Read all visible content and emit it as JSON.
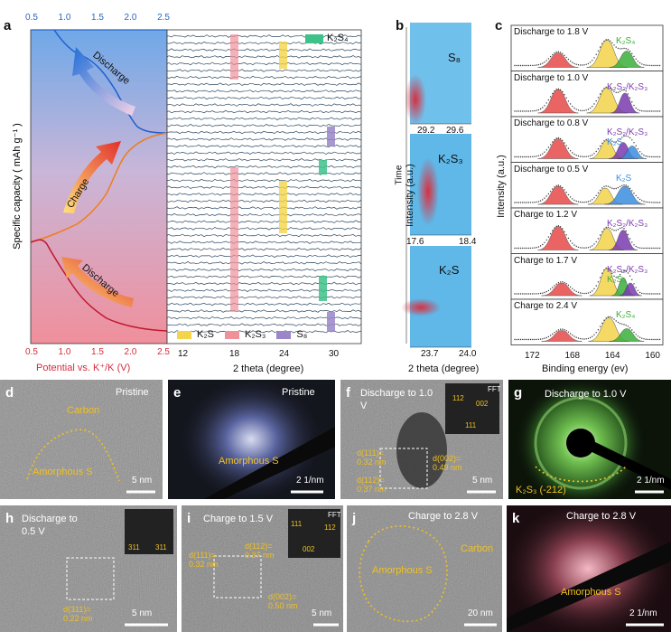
{
  "panels": {
    "a": {
      "letter": "a",
      "top_axis_ticks": [
        "0.5",
        "1.0",
        "1.5",
        "2.0",
        "2.5"
      ],
      "bottom_axis_ticks": [
        "0.5",
        "1.0",
        "1.5",
        "2.0",
        "2.5"
      ],
      "y_label": "Specific capacity ( mAh g⁻¹ )",
      "x_label": "Potential vs. K⁺/K (V)",
      "arrows": [
        "Discharge",
        "Charge",
        "Discharge"
      ],
      "xrd_ticks": [
        "12",
        "18",
        "24",
        "30"
      ],
      "xrd_xlabel": "2 theta (degree)",
      "legend_top": "K₂S₄",
      "legend_bottom": [
        "K₂S",
        "K₂S₃",
        "S₈"
      ]
    },
    "b": {
      "letter": "b",
      "ylabel_outer": "Intensity (a.u.)",
      "ylabel_mid": "Time",
      "sub": [
        {
          "label": "S₈",
          "ticks": [
            "29.2",
            "29.6"
          ]
        },
        {
          "label": "K₂S₃",
          "ticks": [
            "17.6",
            "18.4"
          ]
        },
        {
          "label": "K₂S",
          "ticks": [
            "23.7",
            "24.0"
          ]
        }
      ],
      "xlabel": "2 theta (degree)"
    },
    "c": {
      "letter": "c",
      "ylabel": "Intensity (a.u.)",
      "xlabel": "Binding energy (ev)",
      "ticks": [
        "172",
        "168",
        "164",
        "160"
      ],
      "rows": [
        {
          "state": "Discharge to 1.8 V",
          "species": [
            "K₂S₄"
          ]
        },
        {
          "state": "Discharge to 1.0 V",
          "species": [
            "K₂S₂/K₂S₃"
          ]
        },
        {
          "state": "Discharge to 0.8 V",
          "species": [
            "K₂S₂/K₂S₃",
            "K₂S"
          ]
        },
        {
          "state": "Discharge to 0.5 V",
          "species": [
            "K₂S"
          ]
        },
        {
          "state": "Charge to 1.2 V",
          "species": [
            "K₂S₂/K₂S₃"
          ]
        },
        {
          "state": "Charge to 1.7 V",
          "species": [
            "K₂S₂/K₂S₃",
            "K₂S₄"
          ]
        },
        {
          "state": "Charge to 2.4 V",
          "species": [
            "K₂S₄"
          ]
        }
      ]
    },
    "d": {
      "letter": "d",
      "title": "Pristine",
      "labels": [
        "Carbon",
        "Amorphous S"
      ],
      "scale": "5 nm"
    },
    "e": {
      "letter": "e",
      "title": "Pristine",
      "labels": [
        "Amorphous S"
      ],
      "scale": "2 1/nm"
    },
    "f": {
      "letter": "f",
      "title": "Discharge to 1.0 V",
      "fft": "FFT",
      "fft_labels": [
        "112",
        "002",
        "111"
      ],
      "labels": [
        "d(111)=",
        "0.32 nm",
        "d(112)=",
        "0.37 nm",
        "d(002)=",
        "0.49 nm"
      ],
      "scale": "5 nm"
    },
    "g": {
      "letter": "g",
      "title": "Discharge to 1.0 V",
      "labels": [
        "K₂S₃ (-212)"
      ],
      "scale": "2 1/nm"
    },
    "h": {
      "letter": "h",
      "title": "Discharge to 0.5 V",
      "fft_labels": [
        "311",
        "311"
      ],
      "labels": [
        "d(311)=",
        "0.22 nm"
      ],
      "scale": "5 nm"
    },
    "i": {
      "letter": "i",
      "title": "Charge to 1.5 V",
      "fft": "FFT",
      "fft_labels": [
        "111",
        "112",
        "002"
      ],
      "labels": [
        "d(111)=",
        "0.32 nm",
        "d(112)=",
        "0.37 nm",
        "d(002)=",
        "0.50 nm"
      ],
      "scale": "5 nm"
    },
    "j": {
      "letter": "j",
      "title": "Charge to 2.8 V",
      "labels": [
        "Carbon",
        "Amorphous S"
      ],
      "scale": "20 nm"
    },
    "k": {
      "letter": "k",
      "title": "Charge to 2.8 V",
      "labels": [
        "Amorphous S"
      ],
      "scale": "2 1/nm"
    }
  },
  "colors": {
    "blue_axis": "#2a64c8",
    "red_axis": "#d62c3a",
    "xrd_line": "#2a4760",
    "yellow": "#f3d44a",
    "pink": "#f0909a",
    "purple": "#9a86c8",
    "green": "#3ec28a",
    "xps_red": "#e84a4a",
    "xps_blue": "#3a8ee0",
    "xps_purple": "#7a3ab0",
    "xps_green": "#3ab03a"
  }
}
